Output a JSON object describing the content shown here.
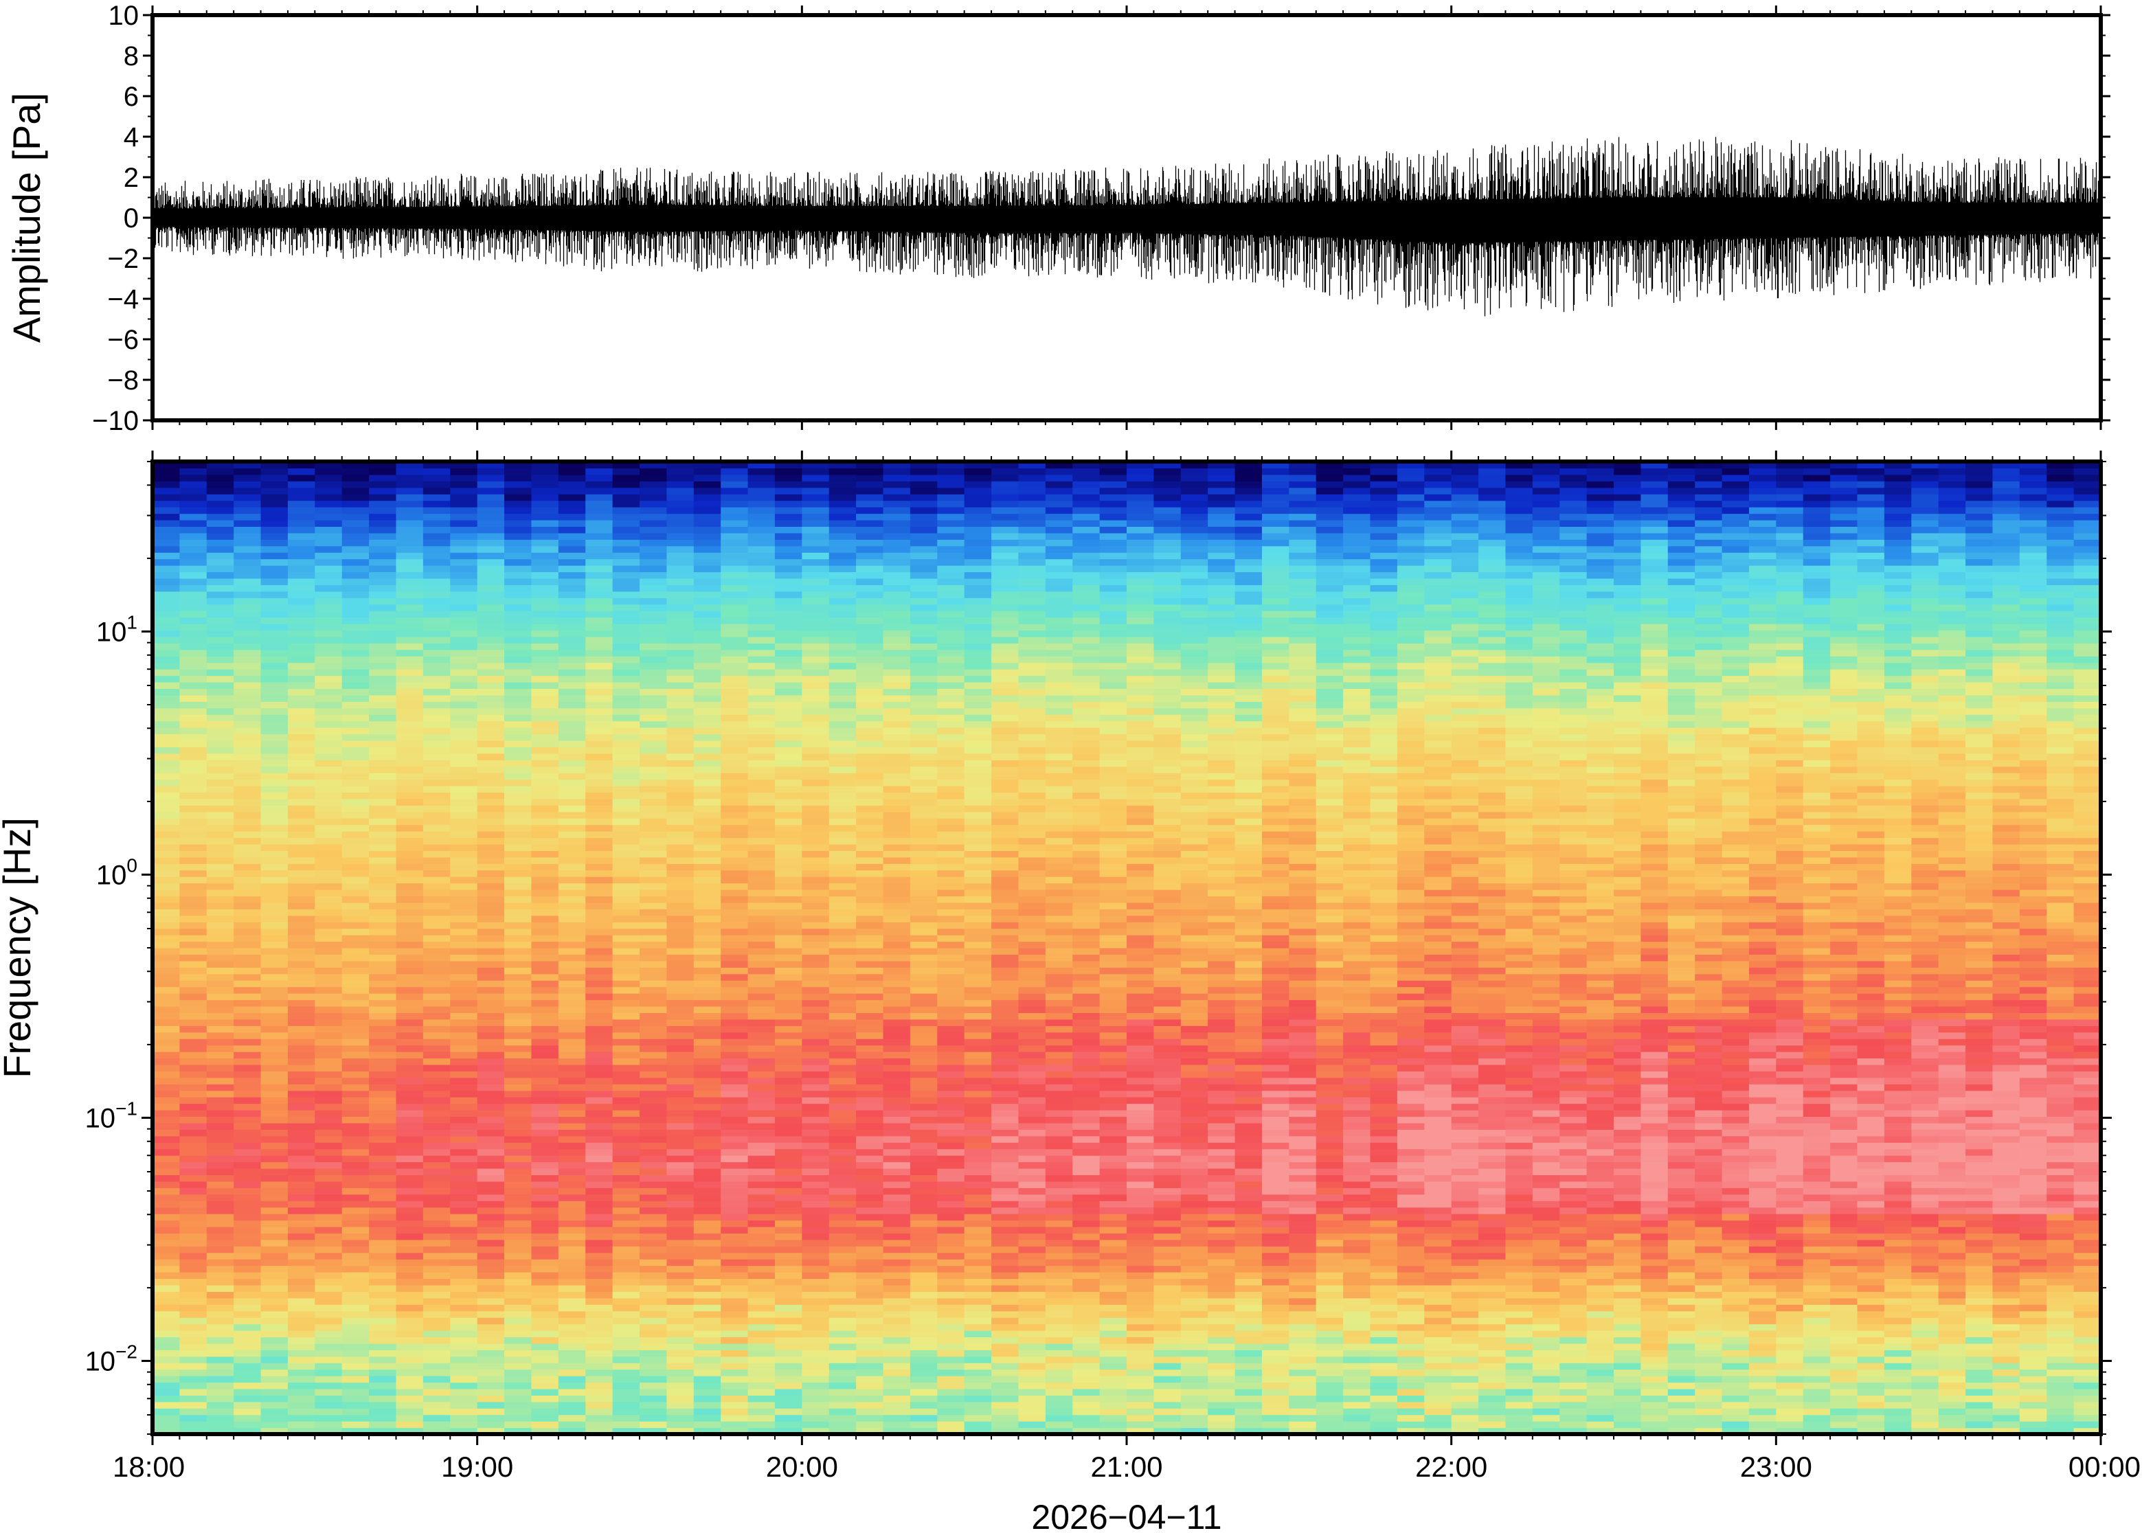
{
  "chart_data": [
    {
      "type": "line",
      "panel": "waveform",
      "ylabel": "Amplitude [Pa]",
      "ylim": [
        -10,
        10
      ],
      "yticks": [
        10,
        8,
        6,
        4,
        2,
        0,
        -2,
        -4,
        -6,
        -8,
        -10
      ],
      "ytick_labels": [
        "10",
        "8",
        "6",
        "4",
        "2",
        "0",
        "−2",
        "−4",
        "−6",
        "−8",
        "−10"
      ],
      "xlim": [
        "18:00",
        "00:00"
      ],
      "envelope": {
        "x_hours": [
          0,
          0.5,
          1,
          1.5,
          2,
          2.5,
          3,
          3.5,
          4,
          4.5,
          5,
          5.5,
          6
        ],
        "max": [
          1.8,
          2.0,
          2.2,
          2.5,
          2.3,
          2.3,
          2.5,
          3.0,
          3.5,
          4.0,
          4.0,
          3.0,
          3.0
        ],
        "min": [
          -1.8,
          -2.0,
          -2.2,
          -2.8,
          -2.5,
          -3.0,
          -3.0,
          -3.5,
          -5.0,
          -4.5,
          -4.0,
          -3.5,
          -3.0
        ]
      },
      "series": [
        {
          "color": "#000000"
        }
      ]
    },
    {
      "type": "heatmap",
      "panel": "spectrogram",
      "ylabel": "Frequency [Hz]",
      "yscale": "log",
      "ylim": [
        0.005,
        50
      ],
      "yticks": [
        0.01,
        0.1,
        1,
        10
      ],
      "ytick_labels": [
        {
          "base": "10",
          "exp": "−2"
        },
        {
          "base": "10",
          "exp": "−1"
        },
        {
          "base": "10",
          "exp": "0"
        },
        {
          "base": "10",
          "exp": "1"
        }
      ],
      "xlim": [
        "18:00",
        "00:00"
      ],
      "xticks": [
        "18:00",
        "19:00",
        "20:00",
        "21:00",
        "22:00",
        "23:00",
        "00:00"
      ],
      "xlabel": "2026−04−11",
      "colormap": "rainbow",
      "colors": {
        "low": "#08005c",
        "mid": "#f0e978",
        "high": "#f44f55"
      }
    }
  ]
}
